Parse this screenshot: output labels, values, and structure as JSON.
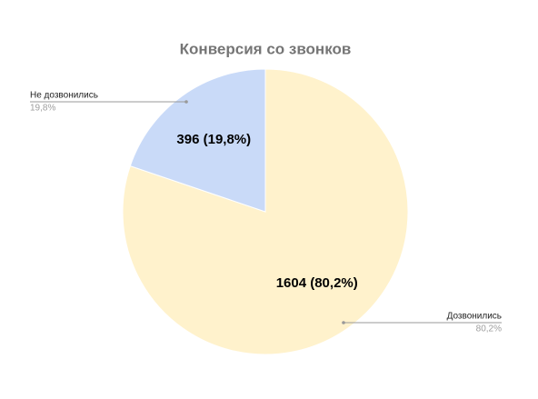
{
  "chart_data": {
    "type": "pie",
    "title": "Конверсия со звонков",
    "categories": [
      "Дозвонились",
      "Не дозвонились"
    ],
    "values": [
      1604,
      396
    ],
    "value_labels": [
      "1604 (80,2%)",
      "396 (19,8%)"
    ],
    "percent_labels": [
      "80,2%",
      "19,8%"
    ],
    "colors": [
      "#fff2cc",
      "#c9daf8"
    ]
  }
}
